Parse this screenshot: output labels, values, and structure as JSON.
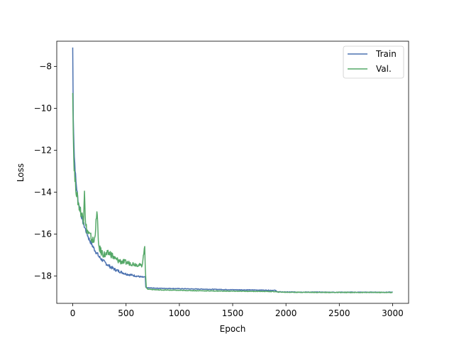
{
  "chart_data": {
    "type": "line",
    "title": "",
    "xlabel": "Epoch",
    "ylabel": "Loss",
    "xlim": [
      -150,
      3150
    ],
    "ylim": [
      -19.3,
      -6.8
    ],
    "xticks": [
      0,
      500,
      1000,
      1500,
      2000,
      2500,
      3000
    ],
    "yticks": [
      -18,
      -16,
      -14,
      -12,
      -10,
      -8
    ],
    "grid": false,
    "legend": {
      "placement": "top-right"
    },
    "series": [
      {
        "name": "Train",
        "color": "#4c72b0",
        "x": [
          0,
          5,
          15,
          30,
          50,
          75,
          100,
          150,
          200,
          250,
          300,
          350,
          400,
          450,
          500,
          550,
          600,
          650,
          680,
          685,
          700,
          800,
          1000,
          1200,
          1500,
          1800,
          1900,
          1920,
          2000,
          2500,
          3000
        ],
        "y": [
          -7.1,
          -10.5,
          -12.3,
          -13.5,
          -14.4,
          -15.0,
          -15.5,
          -16.2,
          -16.7,
          -17.1,
          -17.35,
          -17.55,
          -17.7,
          -17.8,
          -17.9,
          -17.95,
          -18.0,
          -18.05,
          -18.05,
          -18.55,
          -18.56,
          -18.58,
          -18.6,
          -18.62,
          -18.65,
          -18.67,
          -18.68,
          -18.75,
          -18.76,
          -18.77,
          -18.77
        ]
      },
      {
        "name": "Val.",
        "color": "#55a868",
        "x": [
          0,
          5,
          10,
          20,
          40,
          60,
          80,
          100,
          110,
          120,
          150,
          200,
          230,
          240,
          260,
          300,
          350,
          400,
          450,
          500,
          550,
          600,
          650,
          675,
          680,
          690,
          700,
          800,
          1000,
          1200,
          1500,
          1800,
          1900,
          1920,
          2000,
          2500,
          3000
        ],
        "y": [
          -9.0,
          -11.2,
          -12.4,
          -13.4,
          -14.2,
          -14.7,
          -15.0,
          -15.3,
          -13.8,
          -15.6,
          -16.0,
          -16.4,
          -14.9,
          -16.5,
          -16.8,
          -17.0,
          -16.9,
          -17.2,
          -17.3,
          -17.35,
          -17.4,
          -17.45,
          -17.5,
          -16.6,
          -17.6,
          -18.55,
          -18.62,
          -18.66,
          -18.68,
          -18.7,
          -18.72,
          -18.73,
          -18.74,
          -18.76,
          -18.77,
          -18.78,
          -18.78
        ]
      }
    ]
  }
}
